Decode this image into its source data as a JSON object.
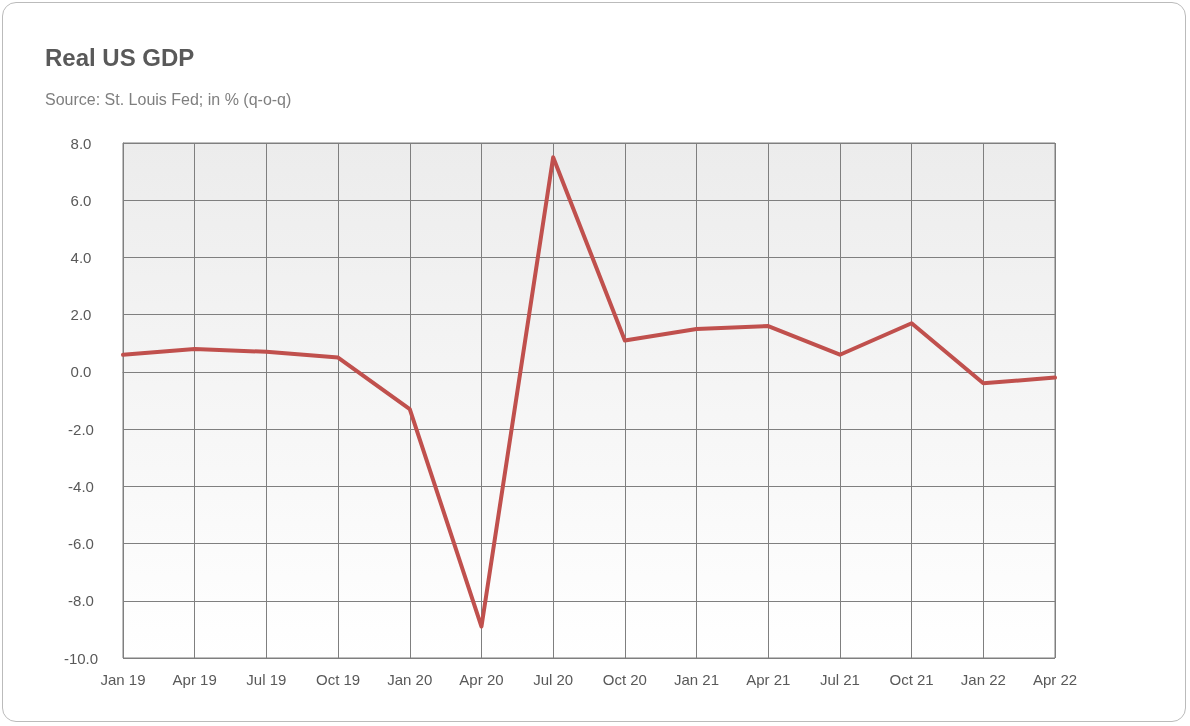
{
  "chart_data": {
    "type": "line",
    "title": "Real US GDP",
    "subtitle": "Source: St. Louis Fed; in % (q-o-q)",
    "categories": [
      "Jan 19",
      "Apr 19",
      "Jul 19",
      "Oct 19",
      "Jan 20",
      "Apr 20",
      "Jul 20",
      "Oct 20",
      "Jan 21",
      "Apr 21",
      "Jul 21",
      "Oct 21",
      "Jan 22",
      "Apr 22"
    ],
    "series": [
      {
        "color": "#c0504d",
        "values": [
          0.6,
          0.8,
          0.7,
          0.5,
          -1.3,
          -8.9,
          7.5,
          1.1,
          1.5,
          1.6,
          0.6,
          1.7,
          -0.4,
          -0.2
        ]
      }
    ],
    "ylim": [
      -10,
      8
    ],
    "yticks": [
      {
        "value": -10,
        "label": "-10.0"
      },
      {
        "value": -8,
        "label": "-8.0"
      },
      {
        "value": -6,
        "label": "-6.0"
      },
      {
        "value": -4,
        "label": "-4.0"
      },
      {
        "value": -2,
        "label": "-2.0"
      },
      {
        "value": 0,
        "label": "0.0"
      },
      {
        "value": 2,
        "label": "2.0"
      },
      {
        "value": 4,
        "label": "4.0"
      },
      {
        "value": 6,
        "label": "6.0"
      },
      {
        "value": 8,
        "label": "8.0"
      }
    ],
    "grid": true,
    "marker": "none",
    "line_style": "solid"
  }
}
